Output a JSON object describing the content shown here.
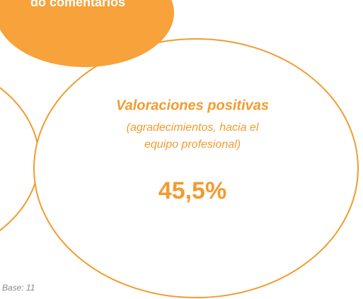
{
  "header": {
    "title": "do comentarios"
  },
  "bubble": {
    "title": "Valoraciones positivas",
    "subtitle_lines": [
      "(agradecimientos, hacia el",
      "equipo profesional)"
    ],
    "value": "45,5%"
  },
  "footer": {
    "base": "Base: 11"
  }
}
